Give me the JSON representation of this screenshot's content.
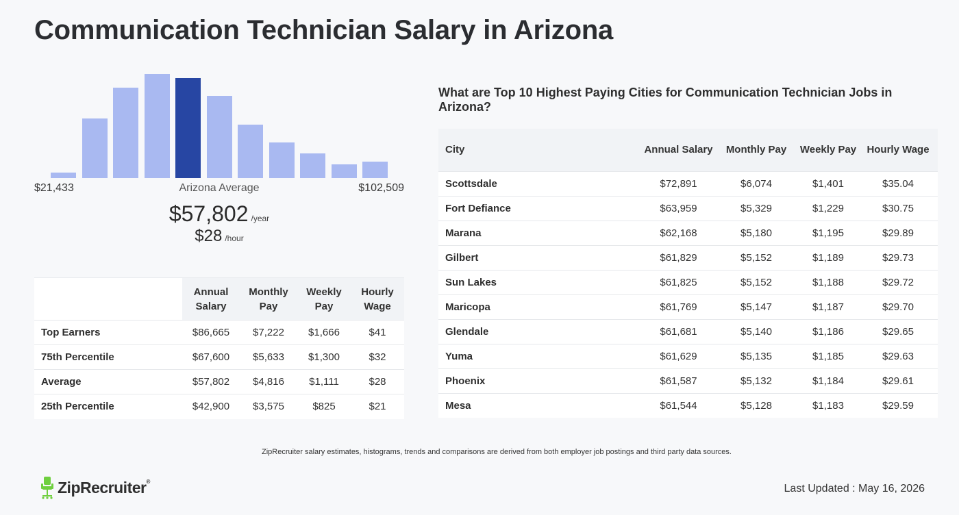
{
  "page": {
    "title": "Communication Technician Salary in Arizona"
  },
  "histogram": {
    "min_label": "$21,433",
    "max_label": "$102,509",
    "avg_label": "Arizona Average",
    "bar_levels": [
      0.05,
      0.57,
      0.87,
      1.0,
      0.96,
      0.79,
      0.51,
      0.34,
      0.24,
      0.13,
      0.16
    ],
    "active_index": 4,
    "bar_color": "#a9b9f1",
    "active_color": "#2746a3"
  },
  "average": {
    "year_value": "$57,802",
    "year_unit": "/year",
    "hour_value": "$28",
    "hour_unit": "/hour"
  },
  "percentile_table": {
    "headers": [
      "Annual Salary",
      "Monthly Pay",
      "Weekly Pay",
      "Hourly Wage"
    ],
    "rows": [
      {
        "label": "Top Earners",
        "values": [
          "$86,665",
          "$7,222",
          "$1,666",
          "$41"
        ]
      },
      {
        "label": "75th Percentile",
        "values": [
          "$67,600",
          "$5,633",
          "$1,300",
          "$32"
        ]
      },
      {
        "label": "Average",
        "values": [
          "$57,802",
          "$4,816",
          "$1,111",
          "$28"
        ]
      },
      {
        "label": "25th Percentile",
        "values": [
          "$42,900",
          "$3,575",
          "$825",
          "$21"
        ]
      }
    ]
  },
  "cities": {
    "title": "What are Top 10 Highest Paying Cities for Communication Technician Jobs in Arizona?",
    "headers": [
      "City",
      "Annual Salary",
      "Monthly Pay",
      "Weekly Pay",
      "Hourly Wage"
    ],
    "rows": [
      {
        "city": "Scottsdale",
        "values": [
          "$72,891",
          "$6,074",
          "$1,401",
          "$35.04"
        ]
      },
      {
        "city": "Fort Defiance",
        "values": [
          "$63,959",
          "$5,329",
          "$1,229",
          "$30.75"
        ]
      },
      {
        "city": "Marana",
        "values": [
          "$62,168",
          "$5,180",
          "$1,195",
          "$29.89"
        ]
      },
      {
        "city": "Gilbert",
        "values": [
          "$61,829",
          "$5,152",
          "$1,189",
          "$29.73"
        ]
      },
      {
        "city": "Sun Lakes",
        "values": [
          "$61,825",
          "$5,152",
          "$1,188",
          "$29.72"
        ]
      },
      {
        "city": "Maricopa",
        "values": [
          "$61,769",
          "$5,147",
          "$1,187",
          "$29.70"
        ]
      },
      {
        "city": "Glendale",
        "values": [
          "$61,681",
          "$5,140",
          "$1,186",
          "$29.65"
        ]
      },
      {
        "city": "Yuma",
        "values": [
          "$61,629",
          "$5,135",
          "$1,185",
          "$29.63"
        ]
      },
      {
        "city": "Phoenix",
        "values": [
          "$61,587",
          "$5,132",
          "$1,184",
          "$29.61"
        ]
      },
      {
        "city": "Mesa",
        "values": [
          "$61,544",
          "$5,128",
          "$1,183",
          "$29.59"
        ]
      }
    ]
  },
  "footer": {
    "disclaimer": "ZipRecruiter salary estimates, histograms, trends and comparisons are derived from both employer job postings and third party data sources.",
    "logo_text": "ZipRecruiter",
    "logo_mark": "®",
    "logo_icon": "ziprecruiter-chair-icon",
    "logo_color": "#6fcf3f",
    "last_updated": "Last Updated : May 16, 2026"
  }
}
